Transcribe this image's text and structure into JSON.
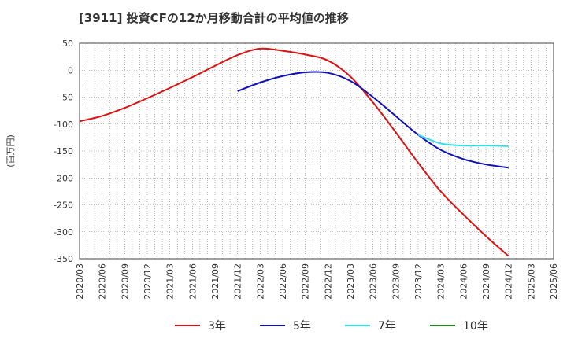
{
  "chart_data": {
    "type": "line",
    "title": "[3911]  投資CFの12か月移動合計の平均値の推移",
    "ylabel": "(百万円)",
    "xlabel": "",
    "ylim": [
      -350,
      50
    ],
    "yticks": [
      50,
      0,
      -50,
      -100,
      -150,
      -200,
      -250,
      -300,
      -350
    ],
    "xticks": [
      "2020/03",
      "2020/06",
      "2020/09",
      "2020/12",
      "2021/03",
      "2021/06",
      "2021/09",
      "2021/12",
      "2022/03",
      "2022/06",
      "2022/09",
      "2022/12",
      "2023/03",
      "2023/06",
      "2023/09",
      "2023/12",
      "2024/03",
      "2024/06",
      "2024/09",
      "2024/12",
      "2025/03",
      "2025/06"
    ],
    "grid": true,
    "legend_position": "bottom",
    "series": [
      {
        "name": "3年",
        "color": "#dd1111",
        "x": [
          "2020/03",
          "2020/06",
          "2020/09",
          "2020/12",
          "2021/03",
          "2021/06",
          "2021/09",
          "2021/12",
          "2022/03",
          "2022/06",
          "2022/09",
          "2022/12",
          "2023/03",
          "2023/06",
          "2023/09",
          "2023/12",
          "2024/03",
          "2024/06",
          "2024/09",
          "2024/12"
        ],
        "values": [
          -95,
          -85,
          -70,
          -52,
          -33,
          -13,
          8,
          28,
          40,
          36,
          29,
          18,
          -12,
          -60,
          -115,
          -172,
          -225,
          -268,
          -308,
          -345
        ]
      },
      {
        "name": "5年",
        "color": "#1111bb",
        "x": [
          "2021/12",
          "2022/03",
          "2022/06",
          "2022/09",
          "2022/12",
          "2023/03",
          "2023/06",
          "2023/09",
          "2023/12",
          "2024/03",
          "2024/06",
          "2024/09",
          "2024/12"
        ],
        "values": [
          -39,
          -23,
          -11,
          -4,
          -5,
          -20,
          -50,
          -85,
          -120,
          -148,
          -165,
          -175,
          -181
        ]
      },
      {
        "name": "7年",
        "color": "#33ddee",
        "x": [
          "2023/12",
          "2024/03",
          "2024/06",
          "2024/09",
          "2024/12"
        ],
        "values": [
          -120,
          -136,
          -140,
          -140,
          -141
        ]
      },
      {
        "name": "10年",
        "color": "#228822",
        "x": [],
        "values": []
      }
    ]
  }
}
